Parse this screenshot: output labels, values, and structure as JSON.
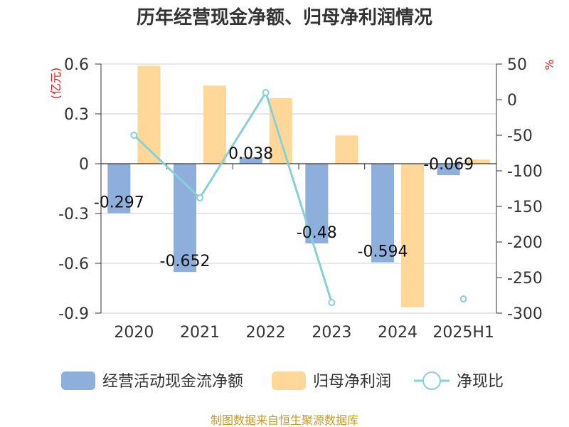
{
  "chart_data": {
    "type": "bar",
    "title": "历年经营现金净额、归母净利润情况",
    "categories": [
      "2020",
      "2021",
      "2022",
      "2023",
      "2024",
      "2025H1"
    ],
    "left_axis": {
      "unit": "(亿元)",
      "ylim": [
        -0.9,
        0.6
      ],
      "ticks": [
        0.6,
        0.3,
        0,
        -0.3,
        -0.6,
        -0.9
      ],
      "tick_labels": [
        "0.6",
        "0.3",
        "0",
        "-0.3",
        "-0.6",
        "-0.9"
      ]
    },
    "right_axis": {
      "unit": "%",
      "ylim": [
        -300,
        50
      ],
      "ticks": [
        50,
        0,
        -50,
        -100,
        -150,
        -200,
        -250,
        -300
      ],
      "tick_labels": [
        "50",
        "0",
        "-50",
        "-100",
        "-150",
        "-200",
        "-250",
        "-300"
      ]
    },
    "series": [
      {
        "name": "经营活动现金流净额",
        "type": "bar",
        "axis": "left",
        "color": "#8eaedb",
        "values": [
          -0.297,
          -0.652,
          0.038,
          -0.48,
          -0.594,
          -0.069
        ],
        "labels": [
          "-0.297",
          "-0.652",
          "0.038",
          "-0.48",
          "-0.594",
          "-0.069"
        ]
      },
      {
        "name": "归母净利润",
        "type": "bar",
        "axis": "left",
        "color": "#ffd899",
        "values": [
          0.59,
          0.47,
          0.395,
          0.17,
          -0.865,
          0.025
        ]
      },
      {
        "name": "净现比",
        "type": "line",
        "axis": "right",
        "color": "#87d1d6",
        "values": [
          -50,
          -138,
          10,
          -285,
          null,
          -280
        ]
      }
    ],
    "grid": true,
    "legend_position": "bottom"
  },
  "source_text": "制图数据来自恒生聚源数据库"
}
